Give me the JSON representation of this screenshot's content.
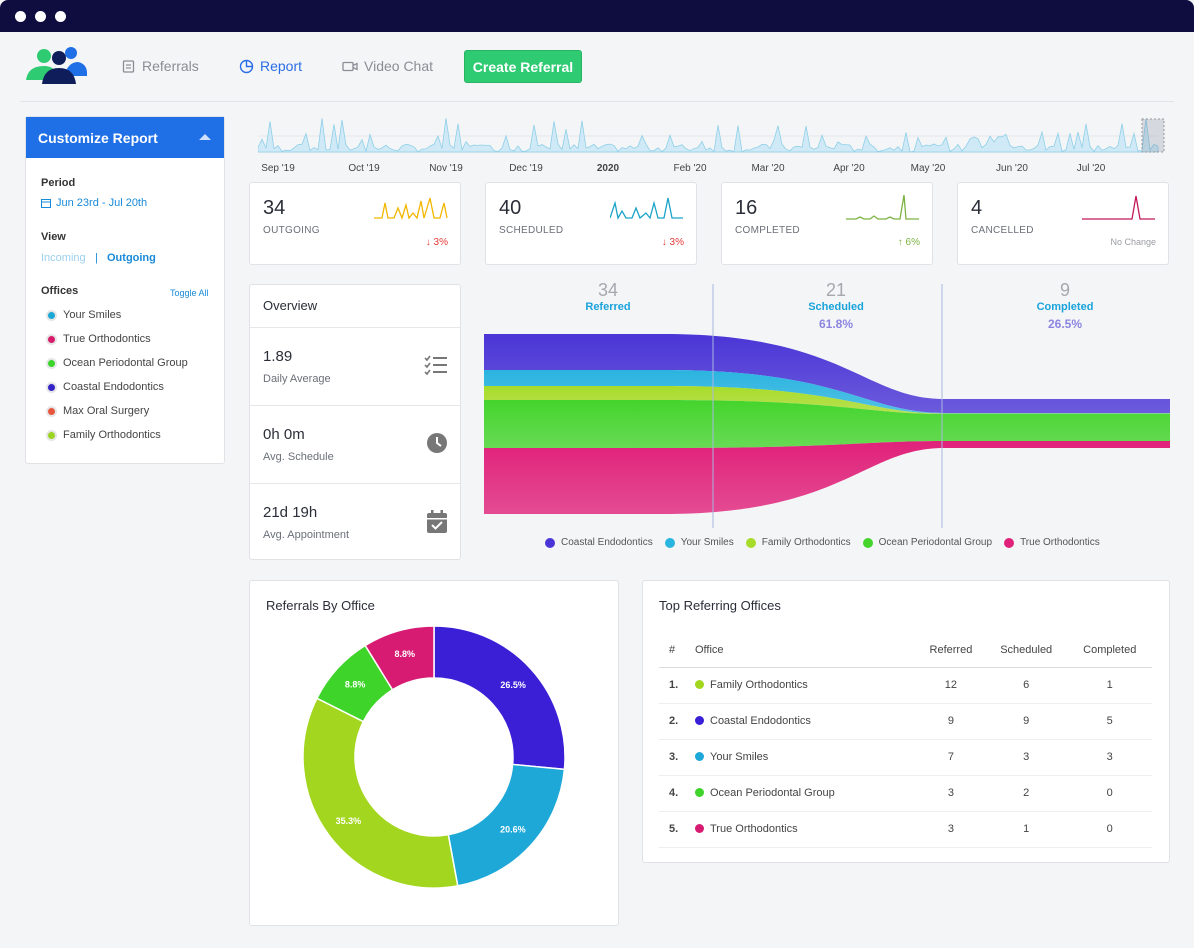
{
  "nav": {
    "referrals": "Referrals",
    "report": "Report",
    "video_chat": "Video Chat",
    "create_referral": "Create Referral"
  },
  "timeline": {
    "labels": [
      "Sep '19",
      "Oct '19",
      "Nov '19",
      "Dec '19",
      "2020",
      "Feb '20",
      "Mar '20",
      "Apr '20",
      "May '20",
      "Jun '20",
      "Jul '20"
    ]
  },
  "customize": {
    "title": "Customize Report",
    "period_label": "Period",
    "period_value": "Jun 23rd - Jul 20th",
    "view_label": "View",
    "view_incoming": "Incoming",
    "view_separator": "|",
    "view_outgoing": "Outgoing",
    "offices_label": "Offices",
    "toggle_all": "Toggle All",
    "offices": [
      {
        "name": "Your Smiles",
        "color": "#1ba8d4"
      },
      {
        "name": "True Orthodontics",
        "color": "#d81b6a"
      },
      {
        "name": "Ocean Periodontal Group",
        "color": "#3ad42a"
      },
      {
        "name": "Coastal Endodontics",
        "color": "#3222c8"
      },
      {
        "name": "Max Oral Surgery",
        "color": "#e8553d"
      },
      {
        "name": "Family Orthodontics",
        "color": "#9bd422"
      }
    ]
  },
  "stats": [
    {
      "value": "34",
      "label": "OUTGOING",
      "change": "3%",
      "direction": "down",
      "color": "#f2b600"
    },
    {
      "value": "40",
      "label": "SCHEDULED",
      "change": "3%",
      "direction": "down",
      "color": "#1aa3c8"
    },
    {
      "value": "16",
      "label": "COMPLETED",
      "change": "6%",
      "direction": "up",
      "color": "#7cb342"
    },
    {
      "value": "4",
      "label": "CANCELLED",
      "change": "No Change",
      "direction": "none",
      "color": "#c2185b"
    }
  ],
  "overview": {
    "title": "Overview",
    "rows": [
      {
        "value": "1.89",
        "caption": "Daily Average"
      },
      {
        "value": "0h 0m",
        "caption": "Avg. Schedule"
      },
      {
        "value": "21d 19h",
        "caption": "Avg. Appointment"
      }
    ]
  },
  "funnel": {
    "stages": [
      {
        "count": "34",
        "label": "Referred",
        "percent": ""
      },
      {
        "count": "21",
        "label": "Scheduled",
        "percent": "61.8%"
      },
      {
        "count": "9",
        "label": "Completed",
        "percent": "26.5%"
      }
    ],
    "legend": [
      {
        "name": "Coastal Endodontics",
        "color": "#4a35d6"
      },
      {
        "name": "Your Smiles",
        "color": "#2ab4e0"
      },
      {
        "name": "Family Orthodontics",
        "color": "#a8dc2a"
      },
      {
        "name": "Ocean Periodontal Group",
        "color": "#44d42c"
      },
      {
        "name": "True Orthodontics",
        "color": "#e0217a"
      }
    ]
  },
  "referrals_by_office": {
    "title": "Referrals By Office"
  },
  "chart_data": {
    "type": "pie",
    "title": "Referrals By Office",
    "categories": [
      "Coastal Endodontics",
      "Your Smiles",
      "Family Orthodontics",
      "Ocean Periodontal Group",
      "True Orthodontics"
    ],
    "values": [
      26.5,
      20.6,
      35.3,
      8.8,
      8.8
    ],
    "labels": [
      "26.5%",
      "20.6%",
      "35.3%",
      "8.8%",
      "8.8%"
    ],
    "colors": [
      "#3a1fd6",
      "#1ea8d8",
      "#a3d61e",
      "#3fd42a",
      "#d81b72"
    ]
  },
  "top_offices": {
    "title": "Top Referring Offices",
    "headers": [
      "#",
      "Office",
      "Referred",
      "Scheduled",
      "Completed"
    ],
    "rows": [
      {
        "rank": "1.",
        "office": "Family Orthodontics",
        "color": "#a3d61e",
        "referred": "12",
        "scheduled": "6",
        "completed": "1"
      },
      {
        "rank": "2.",
        "office": "Coastal Endodontics",
        "color": "#3a1fd6",
        "referred": "9",
        "scheduled": "9",
        "completed": "5"
      },
      {
        "rank": "3.",
        "office": "Your Smiles",
        "color": "#1ea8d8",
        "referred": "7",
        "scheduled": "3",
        "completed": "3"
      },
      {
        "rank": "4.",
        "office": "Ocean Periodontal Group",
        "color": "#3fd42a",
        "referred": "3",
        "scheduled": "2",
        "completed": "0"
      },
      {
        "rank": "5.",
        "office": "True Orthodontics",
        "color": "#d81b72",
        "referred": "3",
        "scheduled": "1",
        "completed": "0"
      }
    ]
  }
}
